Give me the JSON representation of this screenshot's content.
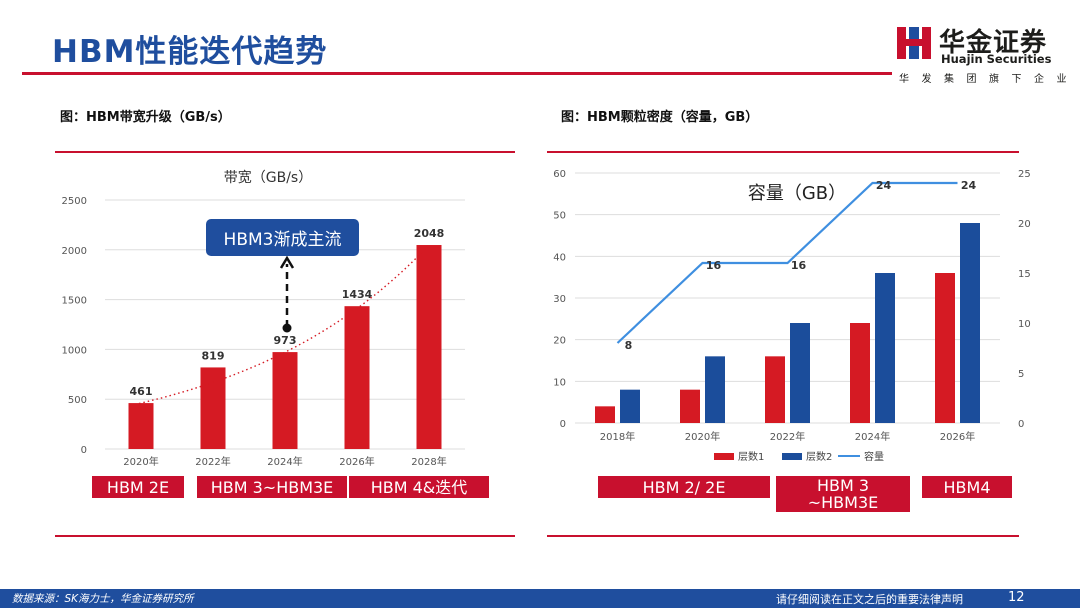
{
  "header": {
    "title": "HBM性能迭代趋势",
    "brand_cn": "华金证券",
    "brand_en": "Huajin Securities",
    "brand_tagline": "华发集团旗下企业"
  },
  "figures": [
    {
      "title": "图：HBM带宽升级（GB/s）"
    },
    {
      "title": "图：HBM颗粒密度（容量，GB）"
    }
  ],
  "chart_data": [
    {
      "type": "bar",
      "title": "带宽（GB/s）",
      "categories": [
        "2020年",
        "2022年",
        "2024年",
        "2026年",
        "2028年"
      ],
      "values": [
        461,
        819,
        973,
        1434,
        2048
      ],
      "ylim": [
        0,
        2500
      ],
      "yticks": [
        0,
        500,
        1000,
        1500,
        2000,
        2500
      ],
      "trendline": "dotted exponential",
      "annotation": "HBM3渐成主流",
      "grid": true,
      "colors": {
        "bar": "#d51a23",
        "trend": "#d51a23",
        "callout": "#1f4e9e"
      },
      "generation_labels": [
        "HBM 2E",
        "HBM 3~HBM3E",
        "HBM 4&迭代"
      ]
    },
    {
      "type": "bar",
      "title": "容量（GB）",
      "categories": [
        "2018年",
        "2020年",
        "2022年",
        "2024年",
        "2026年"
      ],
      "series": [
        {
          "name": "层数1",
          "values": [
            4,
            8,
            16,
            24,
            36
          ],
          "color": "#d51a23"
        },
        {
          "name": "层数2",
          "values": [
            8,
            16,
            24,
            36,
            48
          ],
          "color": "#1b4d9b"
        },
        {
          "name": "容量",
          "type": "line",
          "axis": "right",
          "values": [
            8,
            16,
            16,
            24,
            24
          ],
          "color": "#3f8fe0"
        }
      ],
      "data_labels": [
        "8",
        "16",
        "16",
        "24",
        "24"
      ],
      "ylim": [
        0,
        60
      ],
      "yticks": [
        0,
        10,
        20,
        30,
        40,
        50,
        60
      ],
      "y2lim": [
        0,
        25
      ],
      "y2ticks": [
        0,
        5,
        10,
        15,
        20,
        25
      ],
      "legend": "bottom",
      "grid": true,
      "generation_labels": [
        "HBM 2/ 2E",
        "HBM 3\n~HBM3E",
        "HBM4"
      ]
    }
  ],
  "footer": {
    "source": "数据来源：SK海力士，华金证券研究所",
    "notice": "请仔细阅读在正文之后的重要法律声明",
    "page": "12"
  }
}
